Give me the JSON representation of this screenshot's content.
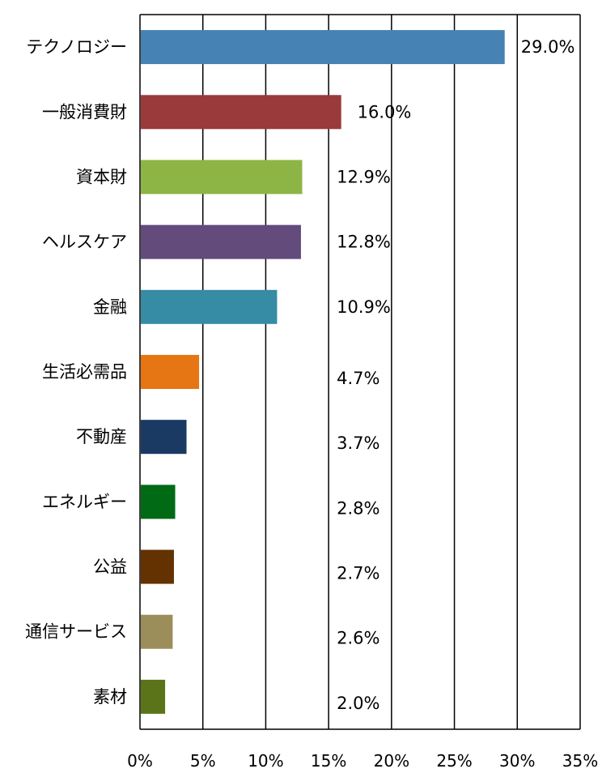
{
  "chart_data": {
    "type": "bar",
    "orientation": "horizontal",
    "categories": [
      "テクノロジー",
      "一般消費財",
      "資本財",
      "ヘルスケア",
      "金融",
      "生活必需品",
      "不動産",
      "エネルギー",
      "公益",
      "通信サービス",
      "素材"
    ],
    "values": [
      29.0,
      16.0,
      12.9,
      12.8,
      10.9,
      4.7,
      3.7,
      2.8,
      2.7,
      2.6,
      2.0
    ],
    "value_labels": [
      "29.0%",
      "16.0%",
      "12.9%",
      "12.8%",
      "10.9%",
      "4.7%",
      "3.7%",
      "2.8%",
      "2.7%",
      "2.6%",
      "2.0%"
    ],
    "colors": [
      "#4682b4",
      "#9b3a3a",
      "#8db545",
      "#634b7c",
      "#368ba5",
      "#e67514",
      "#1a3a63",
      "#006a15",
      "#643200",
      "#9b8e5a",
      "#5b741a"
    ],
    "xlim": [
      0,
      35
    ],
    "xticks": [
      0,
      5,
      10,
      15,
      20,
      25,
      30,
      35
    ],
    "xtick_labels": [
      "0%",
      "5%",
      "10%",
      "15%",
      "20%",
      "25%",
      "30%",
      "35%"
    ],
    "grid": "vertical",
    "legend": "none"
  }
}
